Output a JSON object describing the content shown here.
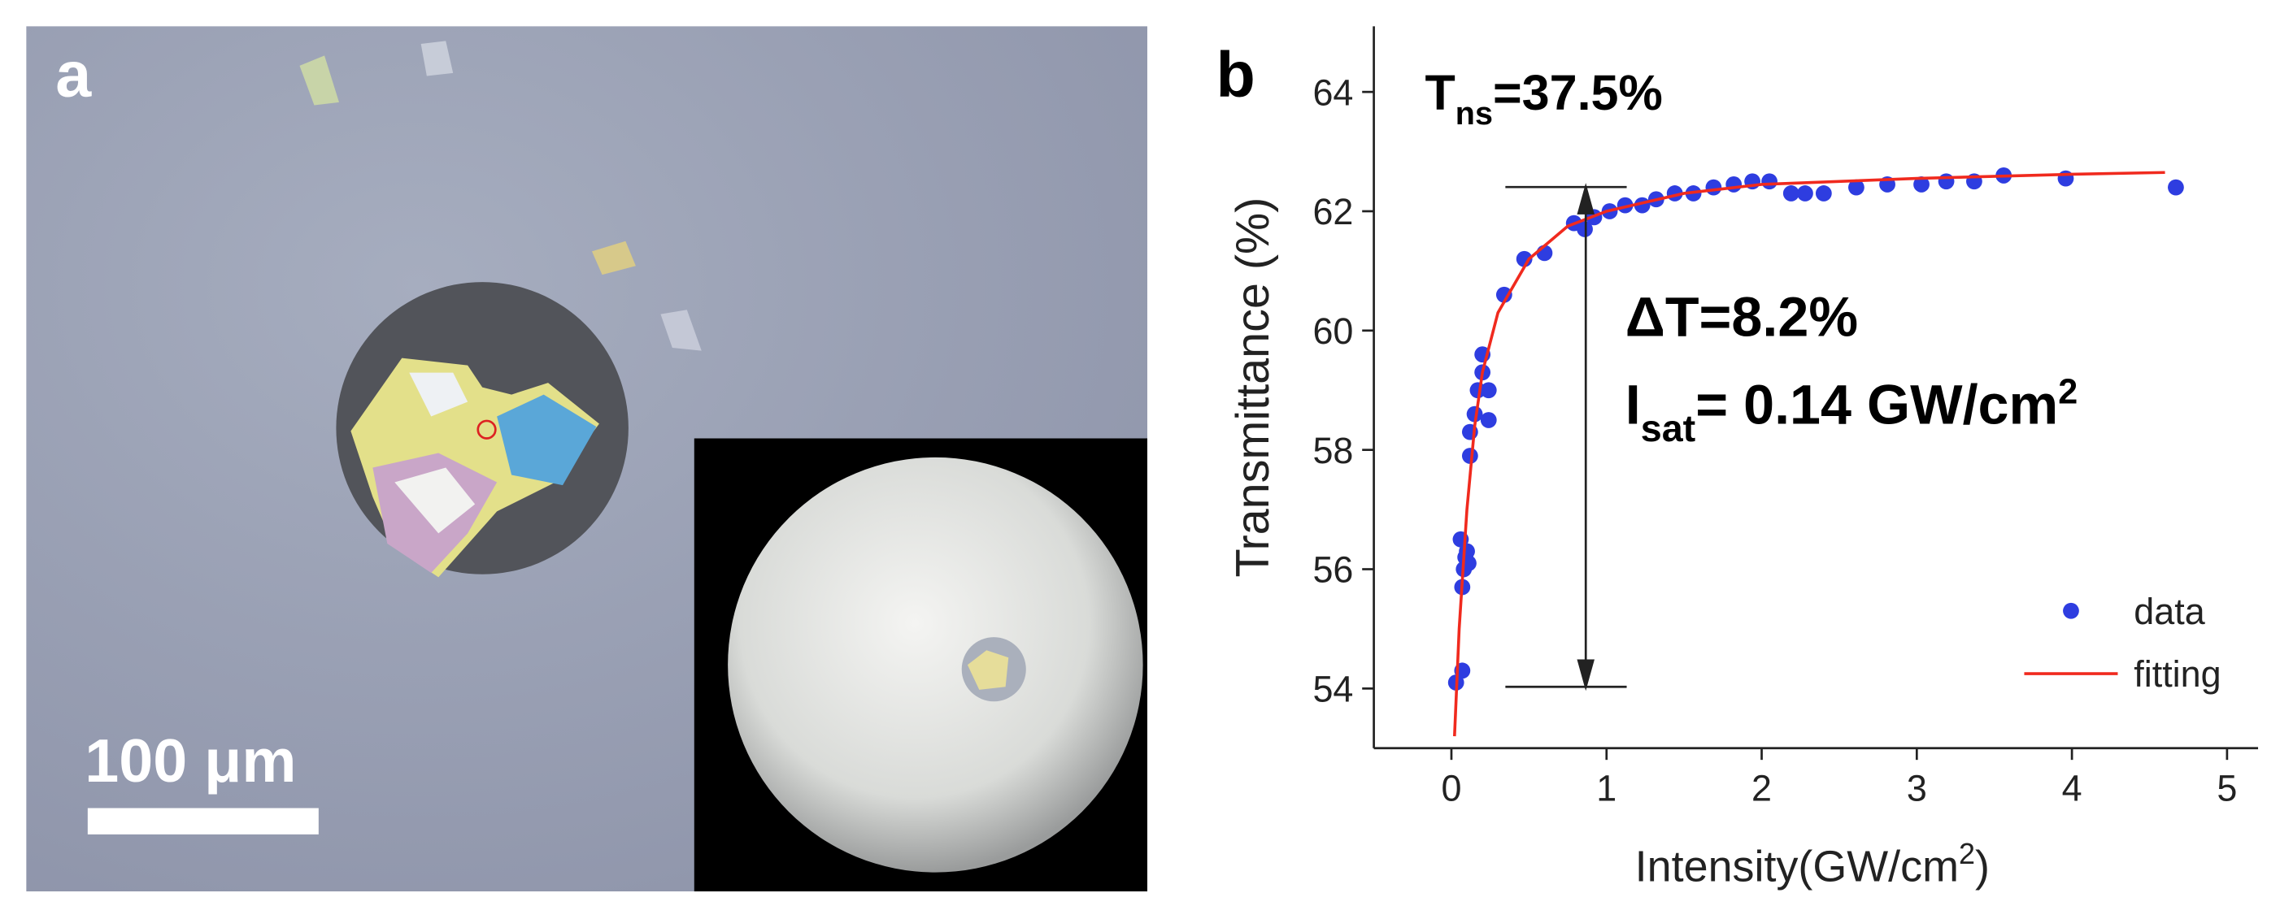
{
  "panel_a": {
    "label": "a",
    "scale_bar": "100 μm"
  },
  "chart_data": {
    "type": "scatter",
    "label": "b",
    "xlabel": {
      "text": "Intensity(GW/cm",
      "sup": "2",
      "close": ")"
    },
    "ylabel": "Transmittance (%)",
    "xlim": [
      -0.5,
      5.2
    ],
    "ylim": [
      53,
      65.1
    ],
    "xticks": [
      0,
      1,
      2,
      3,
      4,
      5
    ],
    "yticks": [
      54,
      56,
      58,
      60,
      62,
      64
    ],
    "legend": "lower right",
    "annotations": {
      "tns": {
        "symbol": "T",
        "subscript": "ns",
        "text": "=37.5%"
      },
      "delta": "ΔT=8.2%",
      "isat": {
        "symbol": "I",
        "subscript": "sat",
        "text": "= 0.14 GW/cm",
        "sup": "2"
      }
    },
    "series": [
      {
        "name": "data",
        "style": "markers",
        "color": "#2e3de0",
        "x": [
          0.03,
          0.07,
          0.07,
          0.08,
          0.09,
          0.1,
          0.11,
          0.06,
          0.12,
          0.12,
          0.15,
          0.17,
          0.2,
          0.2,
          0.24,
          0.24,
          0.34,
          0.47,
          0.6,
          0.79,
          0.86,
          0.92,
          1.02,
          1.12,
          1.23,
          1.32,
          1.44,
          1.56,
          1.69,
          1.82,
          1.94,
          2.05,
          2.19,
          2.28,
          2.4,
          2.61,
          2.81,
          3.03,
          3.19,
          3.37,
          3.56,
          3.96,
          4.67
        ],
        "values": [
          54.1,
          54.3,
          55.7,
          56.0,
          56.2,
          56.3,
          56.1,
          56.5,
          57.9,
          58.3,
          58.6,
          59.0,
          59.3,
          59.6,
          59.0,
          58.5,
          60.6,
          61.2,
          61.3,
          61.8,
          61.7,
          61.9,
          62.0,
          62.1,
          62.1,
          62.2,
          62.3,
          62.3,
          62.4,
          62.45,
          62.5,
          62.5,
          62.3,
          62.3,
          62.3,
          62.4,
          62.45,
          62.45,
          62.5,
          62.5,
          62.6,
          62.55,
          62.4
        ]
      },
      {
        "name": "fitting",
        "style": "line",
        "color": "#f02a1e",
        "x": [
          0.02,
          0.05,
          0.1,
          0.15,
          0.2,
          0.3,
          0.5,
          0.75,
          1.0,
          1.5,
          2.0,
          3.0,
          4.0,
          4.6
        ],
        "values": [
          53.2,
          55.0,
          57.0,
          58.4,
          59.3,
          60.3,
          61.2,
          61.75,
          62.0,
          62.3,
          62.45,
          62.55,
          62.62,
          62.65
        ]
      }
    ]
  }
}
